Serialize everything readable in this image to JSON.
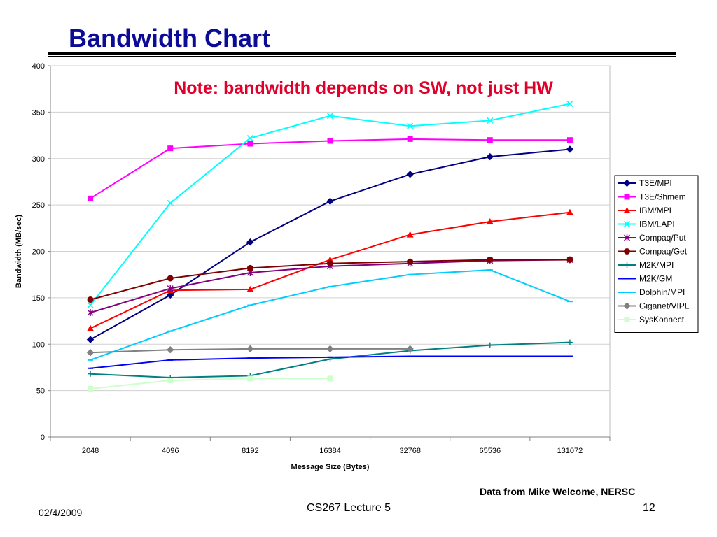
{
  "slide": {
    "title": "Bandwidth Chart",
    "credit": "Data from Mike Welcome, NERSC",
    "date": "02/4/2009",
    "lecture": "CS267 Lecture 5",
    "page": "12"
  },
  "chart_data": {
    "type": "line",
    "annotation": "Note: bandwidth depends on SW, not just HW",
    "xlabel": "Message Size (Bytes)",
    "ylabel": "Bandwidth (MB/sec)",
    "categories": [
      "2048",
      "4096",
      "8192",
      "16384",
      "32768",
      "65536",
      "131072"
    ],
    "ylim": [
      0,
      400
    ],
    "yticks": [
      0,
      50,
      100,
      150,
      200,
      250,
      300,
      350,
      400
    ],
    "grid": true,
    "legend_position": "right",
    "series": [
      {
        "name": "T3E/MPI",
        "color": "#000080",
        "marker": "diamond",
        "values": [
          105,
          153,
          210,
          254,
          283,
          302,
          310
        ]
      },
      {
        "name": "T3E/Shmem",
        "color": "#ff00ff",
        "marker": "square",
        "values": [
          257,
          311,
          316,
          319,
          321,
          320,
          320
        ]
      },
      {
        "name": "IBM/MPI",
        "color": "#ff0000",
        "marker": "triangle",
        "values": [
          117,
          158,
          159,
          191,
          218,
          232,
          242
        ]
      },
      {
        "name": "IBM/LAPI",
        "color": "#00ffff",
        "marker": "x",
        "values": [
          142,
          252,
          322,
          346,
          335,
          341,
          359
        ]
      },
      {
        "name": "Compaq/Put",
        "color": "#800080",
        "marker": "star",
        "values": [
          134,
          160,
          177,
          184,
          187,
          190,
          191
        ]
      },
      {
        "name": "Compaq/Get",
        "color": "#800000",
        "marker": "circle",
        "values": [
          148,
          171,
          182,
          187,
          189,
          191,
          191
        ]
      },
      {
        "name": "M2K/MPI",
        "color": "#008080",
        "marker": "plus",
        "values": [
          68,
          64,
          66,
          84,
          93,
          99,
          102
        ]
      },
      {
        "name": "M2K/GM",
        "color": "#0000ff",
        "marker": "dash",
        "values": [
          74,
          83,
          85,
          86,
          87,
          87,
          87
        ]
      },
      {
        "name": "Dolphin/MPI",
        "color": "#00ccff",
        "marker": "dash",
        "values": [
          83,
          114,
          142,
          162,
          175,
          180,
          146
        ]
      },
      {
        "name": "Giganet/VIPL",
        "color": "#808080",
        "marker": "diamond",
        "values": [
          91,
          94,
          95,
          95,
          95,
          null,
          null
        ]
      },
      {
        "name": "SysKonnect",
        "color": "#ccffcc",
        "marker": "square",
        "values": [
          52,
          61,
          63,
          63,
          null,
          null,
          null
        ]
      }
    ]
  }
}
